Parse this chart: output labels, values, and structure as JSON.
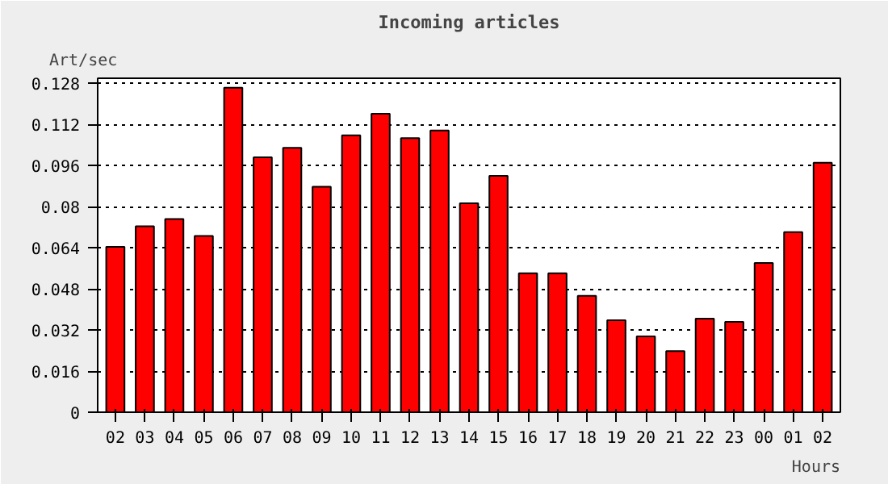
{
  "chart_data": {
    "type": "bar",
    "title": "Incoming articles",
    "ylabel": "Art/sec",
    "xlabel": "Hours",
    "categories": [
      "02",
      "03",
      "04",
      "05",
      "06",
      "07",
      "08",
      "09",
      "10",
      "11",
      "12",
      "13",
      "14",
      "15",
      "16",
      "17",
      "18",
      "19",
      "20",
      "21",
      "22",
      "23",
      "00",
      "01",
      "02"
    ],
    "values": [
      0.0644,
      0.0724,
      0.0752,
      0.0686,
      0.1263,
      0.0992,
      0.1029,
      0.0878,
      0.1078,
      0.1162,
      0.1067,
      0.1097,
      0.0813,
      0.092,
      0.0541,
      0.0541,
      0.0453,
      0.0358,
      0.0295,
      0.0238,
      0.0364,
      0.0352,
      0.0581,
      0.0701,
      0.0971
    ],
    "color": "#ff0000",
    "ylim": [
      0,
      0.13
    ],
    "yticks": [
      0,
      0.016,
      0.032,
      0.048,
      0.064,
      0.08,
      0.096,
      0.112,
      0.128
    ],
    "grid": "y",
    "line_style": "dotted"
  }
}
